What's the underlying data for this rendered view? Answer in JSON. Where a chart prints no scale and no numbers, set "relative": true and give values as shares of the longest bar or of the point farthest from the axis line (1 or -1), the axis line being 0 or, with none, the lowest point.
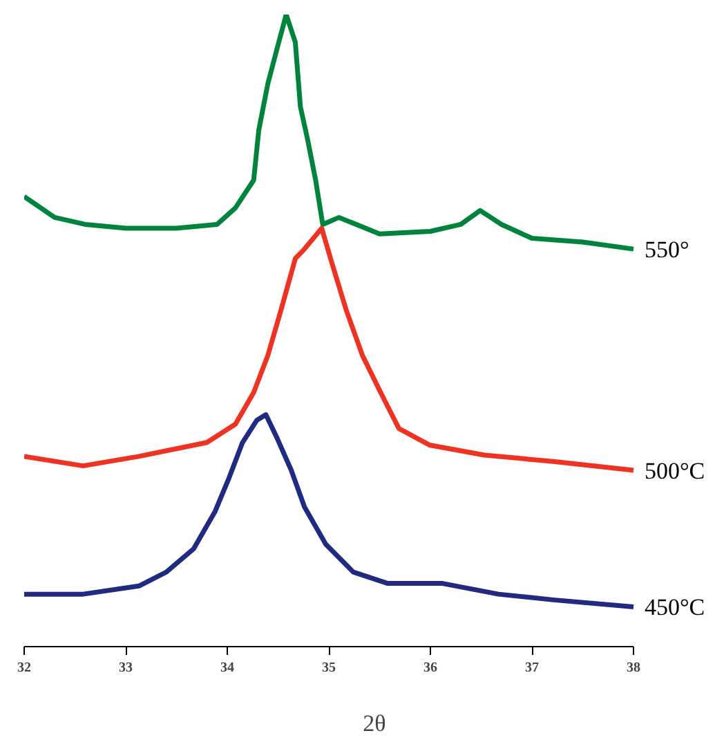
{
  "chart_data": {
    "type": "line",
    "relative": true,
    "xlabel": "2θ",
    "xlim": [
      32,
      38
    ],
    "xticks": [
      32,
      33,
      34,
      35,
      36,
      37,
      38
    ],
    "grid": false,
    "series": [
      {
        "name": "550°",
        "color": "#00843d",
        "x": [
          32.0,
          32.3,
          32.6,
          33.0,
          33.5,
          33.9,
          34.08,
          34.26,
          34.31,
          34.4,
          34.5,
          34.58,
          34.67,
          34.72,
          34.79,
          34.87,
          34.94,
          35.1,
          35.5,
          36.0,
          36.3,
          36.49,
          36.7,
          37.0,
          37.5,
          38.0
        ],
        "values": [
          0.712,
          0.679,
          0.668,
          0.662,
          0.662,
          0.668,
          0.694,
          0.738,
          0.817,
          0.891,
          0.952,
          1.0,
          0.956,
          0.854,
          0.803,
          0.738,
          0.668,
          0.679,
          0.653,
          0.657,
          0.668,
          0.69,
          0.668,
          0.646,
          0.64,
          0.629
        ]
      },
      {
        "name": "500°C",
        "color": "#ee3322",
        "x": [
          32.0,
          32.58,
          33.13,
          33.8,
          34.08,
          34.26,
          34.4,
          34.53,
          34.67,
          34.76,
          34.93,
          35.03,
          35.17,
          35.33,
          35.51,
          35.69,
          35.99,
          36.53,
          37.21,
          38.0
        ],
        "values": [
          0.301,
          0.286,
          0.301,
          0.323,
          0.352,
          0.402,
          0.461,
          0.533,
          0.614,
          0.629,
          0.662,
          0.607,
          0.533,
          0.461,
          0.402,
          0.345,
          0.319,
          0.303,
          0.293,
          0.279
        ]
      },
      {
        "name": "450°C",
        "color": "#1f2a80",
        "x": [
          32.0,
          32.58,
          33.13,
          33.4,
          33.67,
          33.88,
          34.01,
          34.15,
          34.29,
          34.38,
          34.49,
          34.63,
          34.76,
          34.97,
          35.24,
          35.58,
          36.12,
          36.67,
          37.21,
          38.0
        ],
        "values": [
          0.083,
          0.083,
          0.096,
          0.118,
          0.155,
          0.214,
          0.264,
          0.323,
          0.358,
          0.367,
          0.33,
          0.279,
          0.221,
          0.162,
          0.118,
          0.1,
          0.1,
          0.083,
          0.074,
          0.063
        ]
      }
    ]
  }
}
